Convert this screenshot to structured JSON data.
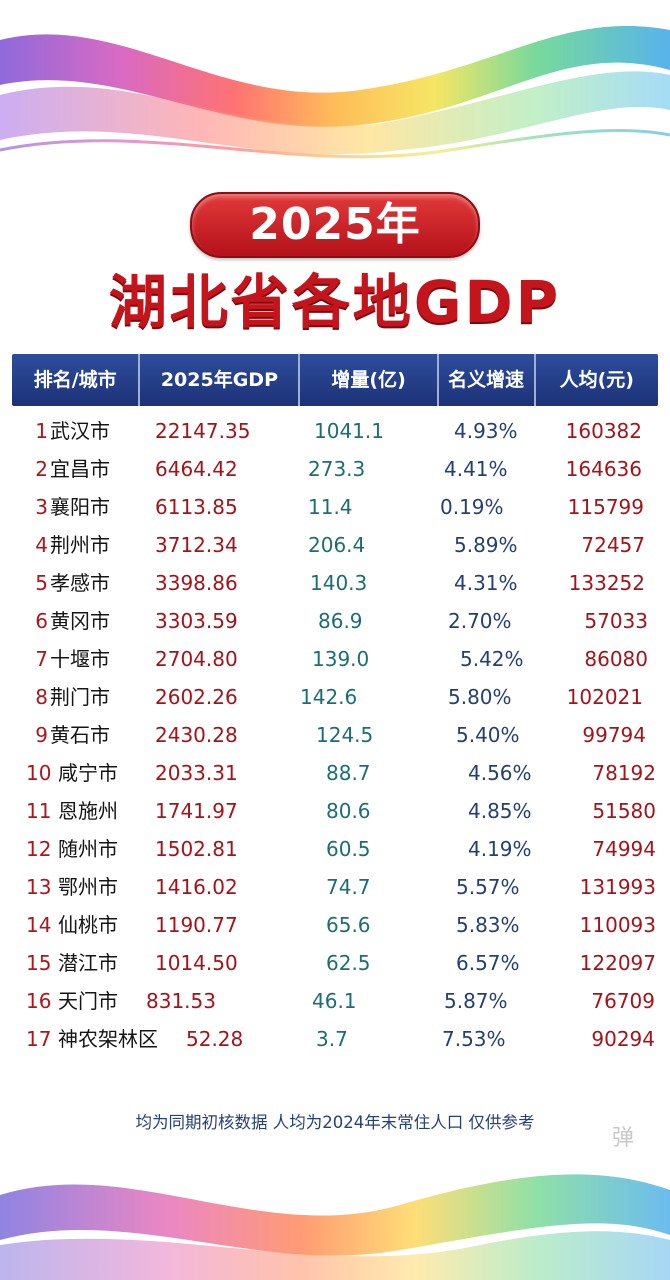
{
  "header": {
    "year_badge": "2025年",
    "title": "湖北省各地GDP"
  },
  "table": {
    "columns": [
      "排名/城市",
      "2025年GDP",
      "增量(亿)",
      "名义增速",
      "人均(元)"
    ],
    "rows": [
      {
        "rank": "1",
        "city": "武汉市",
        "gdp": "22147.35",
        "increase": "1041.1",
        "growth": "4.93%",
        "per_capita": "160382"
      },
      {
        "rank": "2",
        "city": "宜昌市",
        "gdp": "6464.42",
        "increase": "273.3",
        "growth": "4.41%",
        "per_capita": "164636"
      },
      {
        "rank": "3",
        "city": "襄阳市",
        "gdp": "6113.85",
        "increase": "11.4",
        "growth": "0.19%",
        "per_capita": "115799"
      },
      {
        "rank": "4",
        "city": "荆州市",
        "gdp": "3712.34",
        "increase": "206.4",
        "growth": "5.89%",
        "per_capita": "72457"
      },
      {
        "rank": "5",
        "city": "孝感市",
        "gdp": "3398.86",
        "increase": "140.3",
        "growth": "4.31%",
        "per_capita": "133252"
      },
      {
        "rank": "6",
        "city": "黄冈市",
        "gdp": "3303.59",
        "increase": "86.9",
        "growth": "2.70%",
        "per_capita": "57033"
      },
      {
        "rank": "7",
        "city": "十堰市",
        "gdp": "2704.80",
        "increase": "139.0",
        "growth": "5.42%",
        "per_capita": "86080"
      },
      {
        "rank": "8",
        "city": "荆门市",
        "gdp": "2602.26",
        "increase": "142.6",
        "growth": "5.80%",
        "per_capita": "102021"
      },
      {
        "rank": "9",
        "city": "黄石市",
        "gdp": "2430.28",
        "increase": "124.5",
        "growth": "5.40%",
        "per_capita": "99794"
      },
      {
        "rank": "10",
        "city": "咸宁市",
        "gdp": "2033.31",
        "increase": "88.7",
        "growth": "4.56%",
        "per_capita": "78192"
      },
      {
        "rank": "11",
        "city": "恩施州",
        "gdp": "1741.97",
        "increase": "80.6",
        "growth": "4.85%",
        "per_capita": "51580"
      },
      {
        "rank": "12",
        "city": "随州市",
        "gdp": "1502.81",
        "increase": "60.5",
        "growth": "4.19%",
        "per_capita": "74994"
      },
      {
        "rank": "13",
        "city": "鄂州市",
        "gdp": "1416.02",
        "increase": "74.7",
        "growth": "5.57%",
        "per_capita": "131993"
      },
      {
        "rank": "14",
        "city": "仙桃市",
        "gdp": "1190.77",
        "increase": "65.6",
        "growth": "5.83%",
        "per_capita": "110093"
      },
      {
        "rank": "15",
        "city": "潜江市",
        "gdp": "1014.50",
        "increase": "62.5",
        "growth": "6.57%",
        "per_capita": "122097"
      },
      {
        "rank": "16",
        "city": "天门市",
        "gdp": "831.53",
        "increase": "46.1",
        "growth": "5.87%",
        "per_capita": "76709"
      },
      {
        "rank": "17",
        "city": "神农架林区",
        "gdp": "52.28",
        "increase": "3.7",
        "growth": "7.53%",
        "per_capita": "90294"
      }
    ]
  },
  "footer": {
    "note": "均为同期初核数据  人均为2024年末常住人口  仅供参考",
    "watermark": "弹"
  },
  "colors": {
    "title_red": "#c4141c",
    "header_blue": "#1c3277",
    "value_red": "#a5121a",
    "increase_teal": "#1b6e73",
    "growth_navy": "#243f75"
  }
}
